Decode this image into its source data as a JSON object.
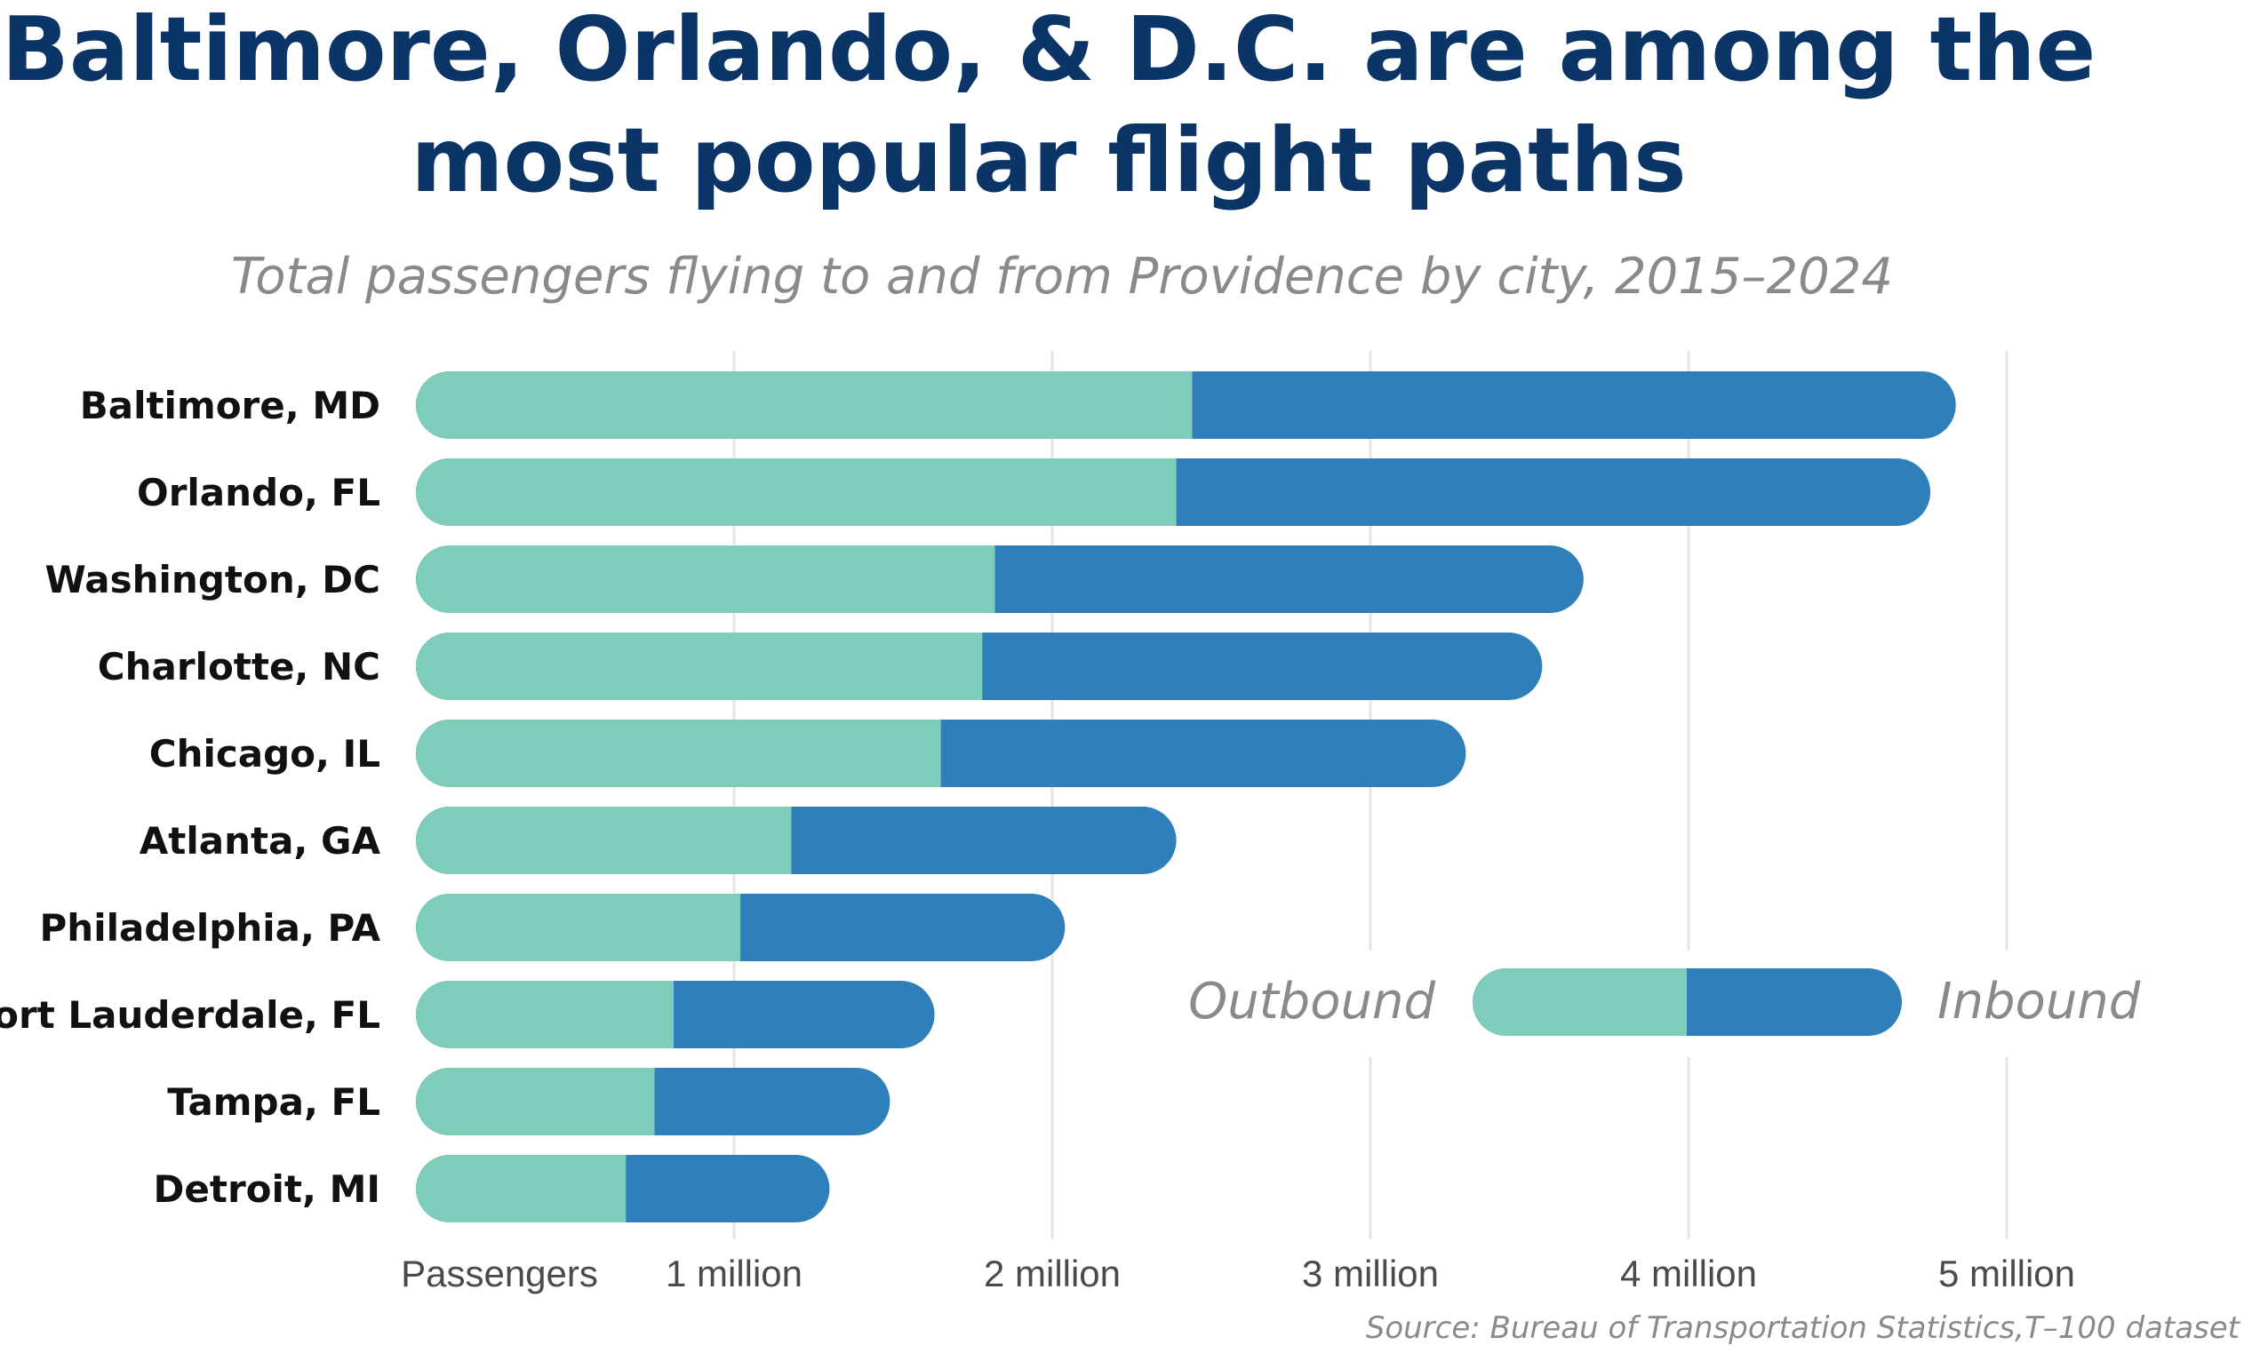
{
  "chart_data": {
    "type": "bar",
    "orientation": "horizontal",
    "stacked": true,
    "title_lines": [
      "Baltimore, Orlando, & D.C. are among the",
      "most popular flight paths"
    ],
    "subtitle": "Total passengers flying to and from Providence by city, 2015–2024",
    "xlabel": "Passengers",
    "xlim": [
      0,
      5000000
    ],
    "xticks": [
      {
        "value": 1000000,
        "label": "1 million"
      },
      {
        "value": 2000000,
        "label": "2 million"
      },
      {
        "value": 3000000,
        "label": "3 million"
      },
      {
        "value": 4000000,
        "label": "4 million"
      },
      {
        "value": 5000000,
        "label": "5 million"
      }
    ],
    "grid": "vertical",
    "categories": [
      "Baltimore, MD",
      "Orlando, FL",
      "Washington, DC",
      "Charlotte, NC",
      "Chicago, IL",
      "Atlanta, GA",
      "Philadelphia, PA",
      "Fort Lauderdale, FL",
      "Tampa, FL",
      "Detroit, MI"
    ],
    "series": [
      {
        "name": "Outbound",
        "color": "#7ecdbb",
        "values": [
          2440000,
          2390000,
          1820000,
          1780000,
          1650000,
          1180000,
          1020000,
          810000,
          750000,
          660000
        ]
      },
      {
        "name": "Inbound",
        "color": "#2e7fba",
        "values": [
          2400000,
          2370000,
          1850000,
          1760000,
          1650000,
          1210000,
          1020000,
          820000,
          740000,
          640000
        ]
      }
    ],
    "legend_position": "bottom-right",
    "source": "Source: Bureau of Transportation Statistics,T–100 dataset"
  }
}
